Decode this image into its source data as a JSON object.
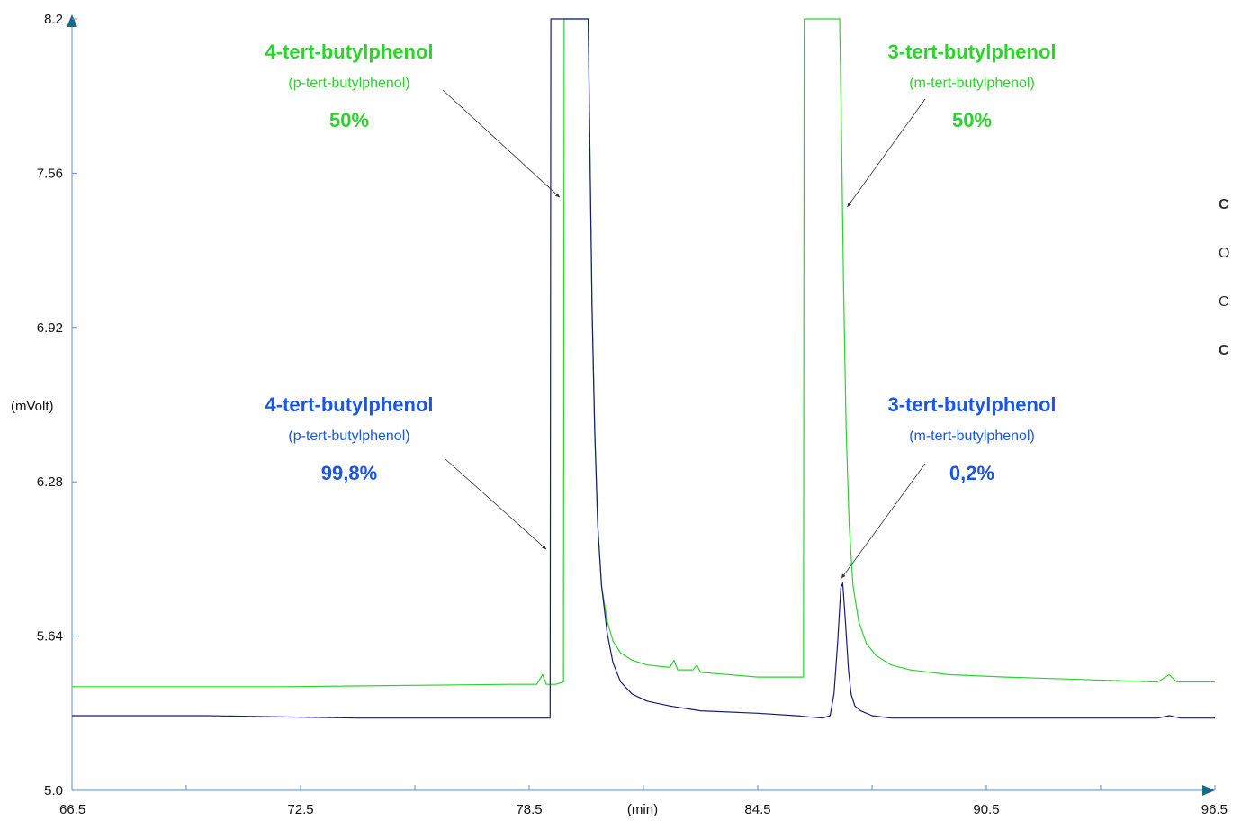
{
  "chart_data": {
    "type": "line",
    "xlabel": "(min)",
    "ylabel": "(mVolt)",
    "xlim": [
      66.5,
      96.5
    ],
    "ylim": [
      5.0,
      8.2
    ],
    "x_ticks": [
      "66.5",
      "72.5",
      "78.5",
      "84.5",
      "90.5",
      "96.5"
    ],
    "y_ticks": [
      "5.0",
      "5.64",
      "6.28",
      "6.92",
      "7.56",
      "8.2"
    ],
    "grid": false,
    "series": [
      {
        "color": "#2bd42b",
        "x": [
          66.5,
          72.0,
          78.0,
          78.7,
          78.85,
          78.95,
          79.1,
          79.2,
          79.4,
          79.42,
          80.05,
          80.1,
          80.15,
          80.22,
          80.3,
          80.4,
          80.55,
          80.7,
          80.9,
          81.2,
          81.6,
          82.2,
          82.3,
          82.4,
          82.8,
          82.9,
          83.0,
          84.5,
          85.7,
          85.72,
          86.65,
          86.7,
          86.75,
          86.82,
          86.9,
          87.0,
          87.15,
          87.35,
          87.6,
          88.0,
          88.5,
          89.5,
          91.0,
          93.0,
          95.0,
          95.3,
          95.5,
          96.5
        ],
        "y": [
          5.43,
          5.43,
          5.44,
          5.44,
          5.48,
          5.44,
          5.44,
          5.44,
          5.45,
          8.2,
          8.2,
          7.6,
          7.0,
          6.5,
          6.1,
          5.85,
          5.7,
          5.62,
          5.57,
          5.54,
          5.52,
          5.51,
          5.54,
          5.5,
          5.5,
          5.52,
          5.49,
          5.47,
          5.47,
          8.2,
          8.2,
          7.7,
          7.1,
          6.5,
          6.1,
          5.85,
          5.7,
          5.61,
          5.56,
          5.52,
          5.5,
          5.48,
          5.47,
          5.46,
          5.45,
          5.48,
          5.45,
          5.45
        ]
      },
      {
        "color": "#1a1a7a",
        "x": [
          66.5,
          70.0,
          74.0,
          78.0,
          79.05,
          79.07,
          80.05,
          80.1,
          80.15,
          80.22,
          80.3,
          80.4,
          80.55,
          80.7,
          80.9,
          81.2,
          81.6,
          82.2,
          83.0,
          84.5,
          85.5,
          86.2,
          86.4,
          86.5,
          86.6,
          86.68,
          86.73,
          86.8,
          86.88,
          86.95,
          87.05,
          87.2,
          87.5,
          88.0,
          89.0,
          91.0,
          93.0,
          95.0,
          95.3,
          95.6,
          96.5
        ],
        "y": [
          5.31,
          5.31,
          5.3,
          5.3,
          5.3,
          8.2,
          8.2,
          7.6,
          7.0,
          6.5,
          6.1,
          5.85,
          5.65,
          5.53,
          5.45,
          5.4,
          5.37,
          5.35,
          5.33,
          5.32,
          5.31,
          5.3,
          5.31,
          5.4,
          5.62,
          5.84,
          5.86,
          5.7,
          5.5,
          5.4,
          5.35,
          5.33,
          5.31,
          5.3,
          5.3,
          5.3,
          5.3,
          5.3,
          5.31,
          5.3,
          5.3
        ]
      }
    ],
    "annotations": [
      {
        "name": "4-tert-butylphenol",
        "alt": "(p-tert-butylphenol)",
        "pct": "50%",
        "color": "#2bd42b",
        "target_x": 79.3,
        "target_y": 7.46
      },
      {
        "name": "3-tert-butylphenol",
        "alt": "(m-tert-butylphenol)",
        "pct": "50%",
        "color": "#2bd42b",
        "target_x": 86.85,
        "target_y": 7.42
      },
      {
        "name": "4-tert-butylphenol",
        "alt": "(p-tert-butylphenol)",
        "pct": "99,8%",
        "color": "#1a56e6",
        "target_x": 78.95,
        "target_y": 6.0
      },
      {
        "name": "3-tert-butylphenol",
        "alt": "(m-tert-butylphenol)",
        "pct": "0,2%",
        "color": "#1a56e6",
        "target_x": 86.7,
        "target_y": 5.88
      }
    ]
  },
  "side_labels": [
    {
      "text": "C",
      "bold": true
    },
    {
      "text": "O",
      "bold": false
    },
    {
      "text": "C",
      "bold": false
    },
    {
      "text": "C",
      "bold": true
    }
  ]
}
